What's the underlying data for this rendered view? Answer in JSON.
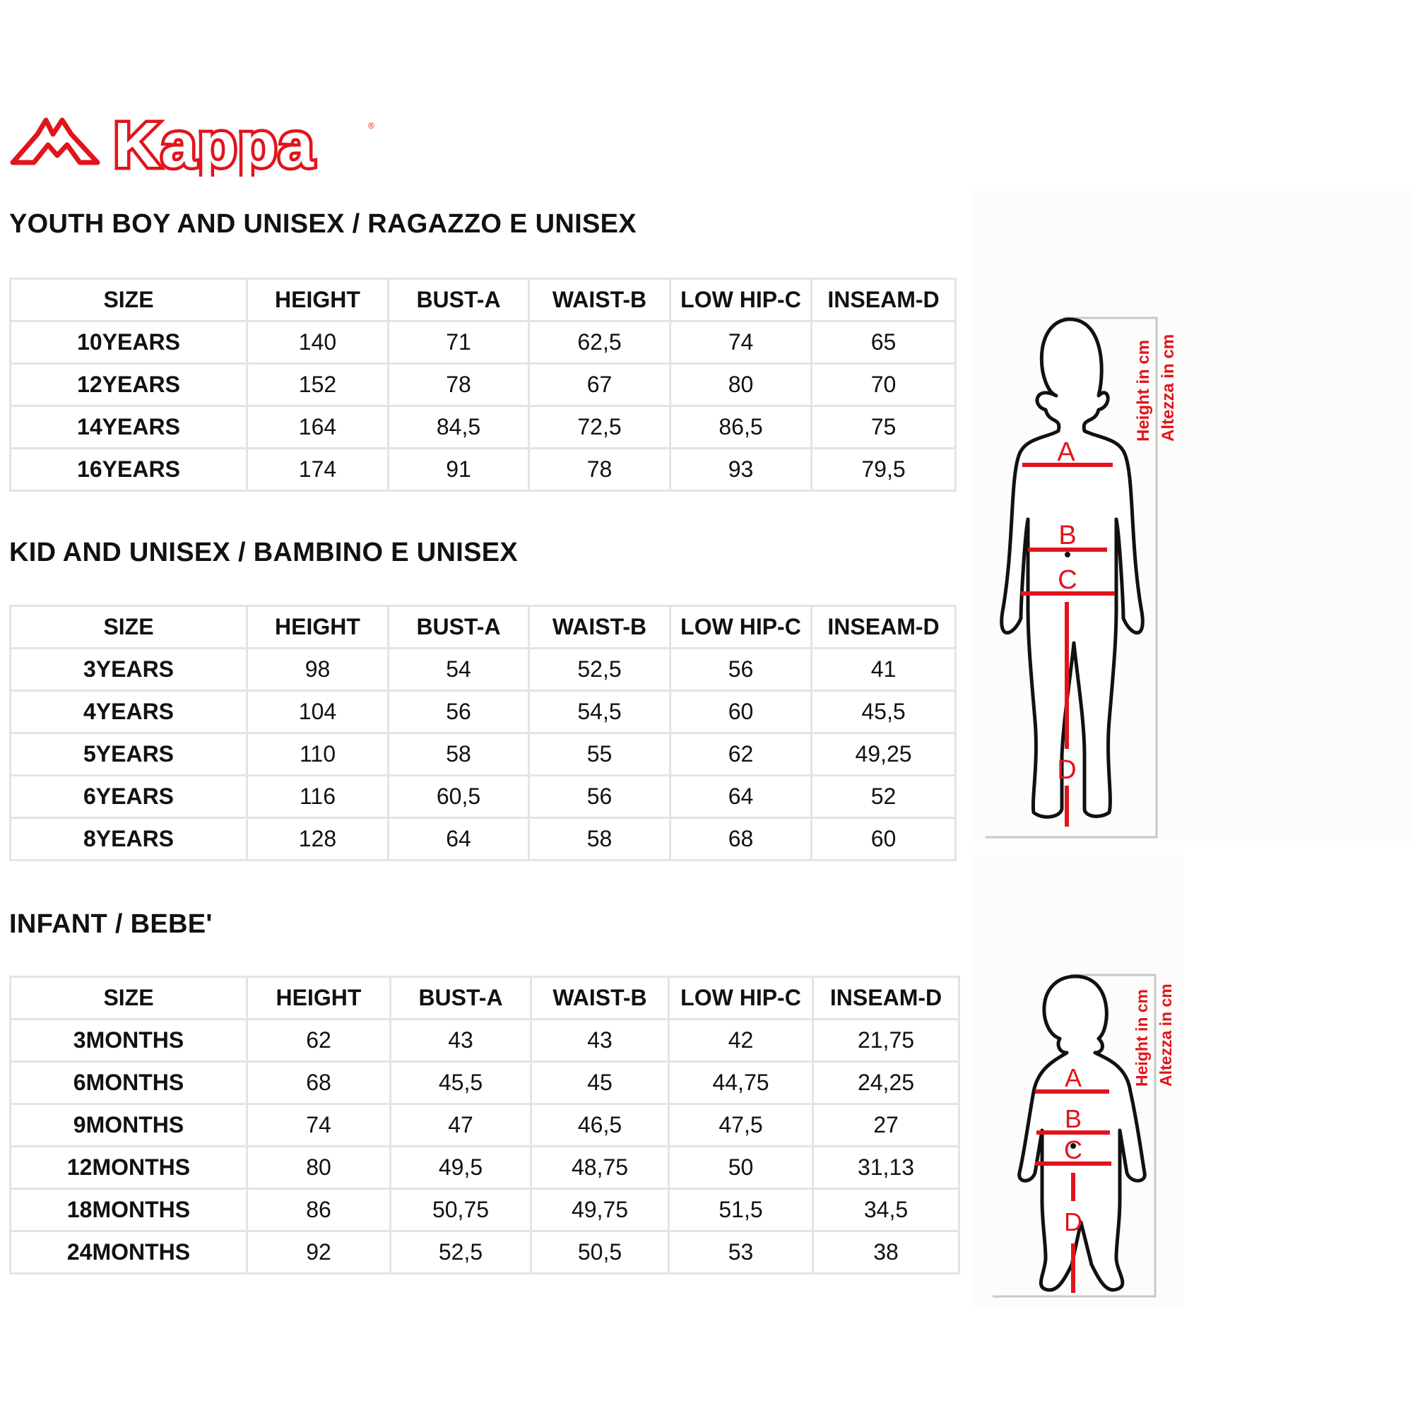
{
  "brand": {
    "logo_text": "Kappa",
    "registered_mark": "®",
    "color": "#e1141c"
  },
  "accent_color": "#e1141c",
  "columns": [
    "SIZE",
    "HEIGHT",
    "BUST-A",
    "WAIST-B",
    "LOW HIP-C",
    "INSEAM-D"
  ],
  "sections": [
    {
      "title": "YOUTH BOY AND UNISEX / RAGAZZO E UNISEX",
      "rows": [
        [
          "10YEARS",
          "140",
          "71",
          "62,5",
          "74",
          "65"
        ],
        [
          "12YEARS",
          "152",
          "78",
          "67",
          "80",
          "70"
        ],
        [
          "14YEARS",
          "164",
          "84,5",
          "72,5",
          "86,5",
          "75"
        ],
        [
          "16YEARS",
          "174",
          "91",
          "78",
          "93",
          "79,5"
        ]
      ]
    },
    {
      "title": "KID AND UNISEX / BAMBINO E UNISEX",
      "rows": [
        [
          "3YEARS",
          "98",
          "54",
          "52,5",
          "56",
          "41"
        ],
        [
          "4YEARS",
          "104",
          "56",
          "54,5",
          "60",
          "45,5"
        ],
        [
          "5YEARS",
          "110",
          "58",
          "55",
          "62",
          "49,25"
        ],
        [
          "6YEARS",
          "116",
          "60,5",
          "56",
          "64",
          "52"
        ],
        [
          "8YEARS",
          "128",
          "64",
          "58",
          "68",
          "60"
        ]
      ]
    },
    {
      "title": "INFANT / BEBE'",
      "rows": [
        [
          "3MONTHS",
          "62",
          "43",
          "43",
          "42",
          "21,75"
        ],
        [
          "6MONTHS",
          "68",
          "45,5",
          "45",
          "44,75",
          "24,25"
        ],
        [
          "9MONTHS",
          "74",
          "47",
          "46,5",
          "47,5",
          "27"
        ],
        [
          "12MONTHS",
          "80",
          "49,5",
          "48,75",
          "50",
          "31,13"
        ],
        [
          "18MONTHS",
          "86",
          "50,75",
          "49,75",
          "51,5",
          "34,5"
        ],
        [
          "24MONTHS",
          "92",
          "52,5",
          "50,5",
          "53",
          "38"
        ]
      ]
    }
  ],
  "figure": {
    "labels": {
      "a": "A",
      "b": "B",
      "c": "C",
      "d": "D"
    },
    "height_en": "Height in cm",
    "height_it": "Altezza in cm"
  }
}
